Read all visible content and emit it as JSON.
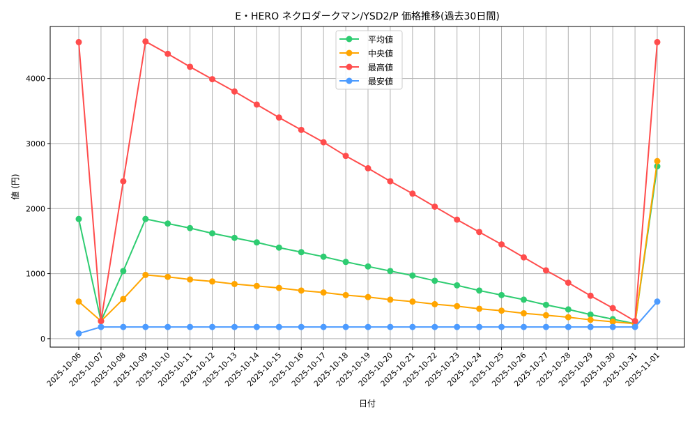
{
  "chart_data": {
    "type": "line",
    "title": "E・HERO ネクロダークマン/YSD2/P 価格推移(過去30日間)",
    "xlabel": "日付",
    "ylabel": "値 (円)",
    "ylim": [
      -130,
      4800
    ],
    "yticks": [
      0,
      1000,
      2000,
      3000,
      4000
    ],
    "grid": true,
    "legend_position": "top-center",
    "categories": [
      "2025-10-06",
      "2025-10-07",
      "2025-10-08",
      "2025-10-09",
      "2025-10-10",
      "2025-10-11",
      "2025-10-12",
      "2025-10-13",
      "2025-10-14",
      "2025-10-15",
      "2025-10-16",
      "2025-10-17",
      "2025-10-18",
      "2025-10-19",
      "2025-10-20",
      "2025-10-21",
      "2025-10-22",
      "2025-10-23",
      "2025-10-24",
      "2025-10-25",
      "2025-10-26",
      "2025-10-27",
      "2025-10-28",
      "2025-10-29",
      "2025-10-30",
      "2025-10-31",
      "2025-11-01"
    ],
    "series": [
      {
        "name": "平均値",
        "color": "#2ecc71",
        "values": [
          1840,
          270,
          1040,
          1840,
          1770,
          1700,
          1620,
          1550,
          1480,
          1400,
          1330,
          1260,
          1180,
          1110,
          1040,
          970,
          890,
          820,
          740,
          670,
          600,
          520,
          450,
          370,
          300,
          230,
          2650
        ]
      },
      {
        "name": "中央値",
        "color": "#ffa500",
        "values": [
          570,
          270,
          610,
          980,
          950,
          910,
          880,
          840,
          810,
          780,
          740,
          710,
          670,
          640,
          600,
          570,
          530,
          500,
          460,
          430,
          390,
          360,
          330,
          290,
          260,
          230,
          2730
        ]
      },
      {
        "name": "最高値",
        "color": "#ff4c4c",
        "values": [
          4560,
          270,
          2420,
          4570,
          4380,
          4180,
          3990,
          3800,
          3600,
          3400,
          3210,
          3020,
          2810,
          2620,
          2420,
          2230,
          2030,
          1830,
          1640,
          1450,
          1250,
          1050,
          860,
          660,
          470,
          270,
          4560
        ]
      },
      {
        "name": "最安値",
        "color": "#4c9bff",
        "values": [
          80,
          180,
          180,
          180,
          180,
          180,
          180,
          180,
          180,
          180,
          180,
          180,
          180,
          180,
          180,
          180,
          180,
          180,
          180,
          180,
          180,
          180,
          180,
          180,
          180,
          180,
          570
        ]
      }
    ]
  }
}
